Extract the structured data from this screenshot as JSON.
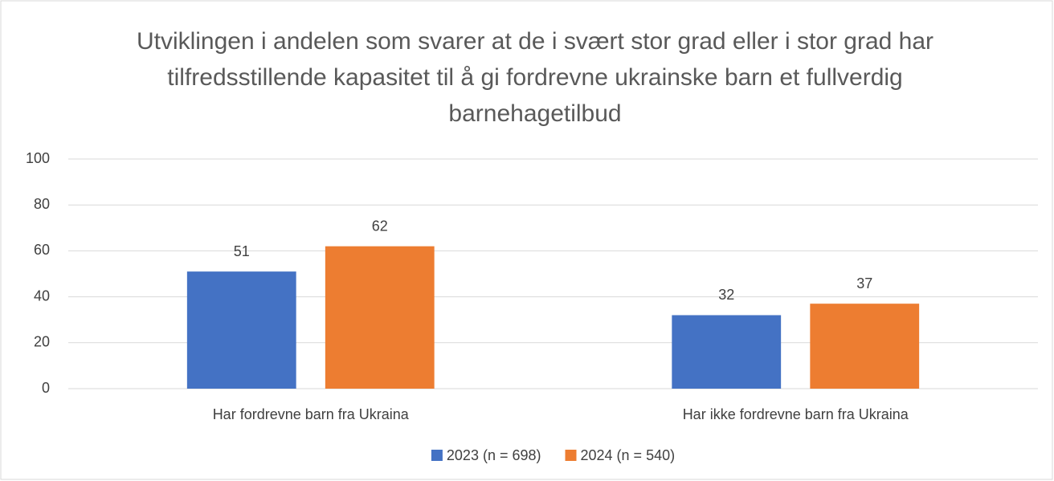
{
  "chart_data": {
    "type": "bar",
    "title": "Utviklingen i andelen som svarer at de i svært stor grad eller i stor grad har tilfredsstillende kapasitet til å gi fordrevne ukrainske barn et fullverdig barnehagetilbud",
    "categories": [
      "Har fordrevne barn fra Ukraina",
      "Har ikke fordrevne barn fra Ukraina"
    ],
    "series": [
      {
        "name": "2023 (n = 698)",
        "color": "#4472c4",
        "values": [
          51,
          32
        ]
      },
      {
        "name": "2024 (n = 540)",
        "color": "#ed7d31",
        "values": [
          62,
          37
        ]
      }
    ],
    "ylim": [
      0,
      100
    ],
    "yticks": [
      0,
      20,
      40,
      60,
      80,
      100
    ],
    "grid": true,
    "legend": "bottom"
  }
}
